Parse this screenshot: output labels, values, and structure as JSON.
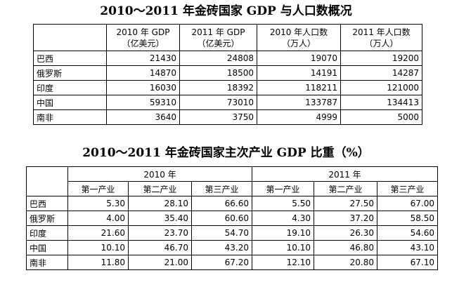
{
  "table1": {
    "title": "2010～2011 年金砖国家 GDP 与人口数概况",
    "headers": [
      {
        "line1": "",
        "line2": ""
      },
      {
        "line1": "2010 年 GDP",
        "line2": "（亿美元）"
      },
      {
        "line1": "2011 年 GDP",
        "line2": "（亿美元）"
      },
      {
        "line1": "2010 年人口数",
        "line2": "（万人）"
      },
      {
        "line1": "2011 年人口数",
        "line2": "（万人）"
      }
    ],
    "rows": [
      {
        "country": "巴西",
        "values": [
          "21430",
          "24808",
          "19070",
          "19200"
        ]
      },
      {
        "country": "俄罗斯",
        "values": [
          "14870",
          "18500",
          "14191",
          "14287"
        ]
      },
      {
        "country": "印度",
        "values": [
          "16030",
          "18392",
          "118211",
          "121000"
        ]
      },
      {
        "country": "中国",
        "values": [
          "59310",
          "73010",
          "133787",
          "134413"
        ]
      },
      {
        "country": "南非",
        "values": [
          "3640",
          "3750",
          "4999",
          "5000"
        ]
      }
    ]
  },
  "table2": {
    "title": "2010～2011 年金砖国家主次产业 GDP 比重（%）",
    "years": [
      "2010 年",
      "2011 年"
    ],
    "sub_headers": [
      "第一产业",
      "第二产业",
      "第三产业",
      "第一产业",
      "第二产业",
      "第三产业"
    ],
    "rows": [
      {
        "country": "巴西",
        "values": [
          "5.30",
          "28.10",
          "66.60",
          "5.50",
          "27.50",
          "67.00"
        ]
      },
      {
        "country": "俄罗斯",
        "values": [
          "4.00",
          "35.40",
          "60.60",
          "4.30",
          "37.20",
          "58.50"
        ]
      },
      {
        "country": "印度",
        "values": [
          "21.60",
          "23.70",
          "54.70",
          "19.10",
          "26.30",
          "54.60"
        ]
      },
      {
        "country": "中国",
        "values": [
          "10.10",
          "46.70",
          "43.20",
          "10.10",
          "46.80",
          "43.10"
        ]
      },
      {
        "country": "南非",
        "values": [
          "11.80",
          "21.00",
          "67.20",
          "12.10",
          "20.80",
          "67.10"
        ]
      }
    ]
  }
}
